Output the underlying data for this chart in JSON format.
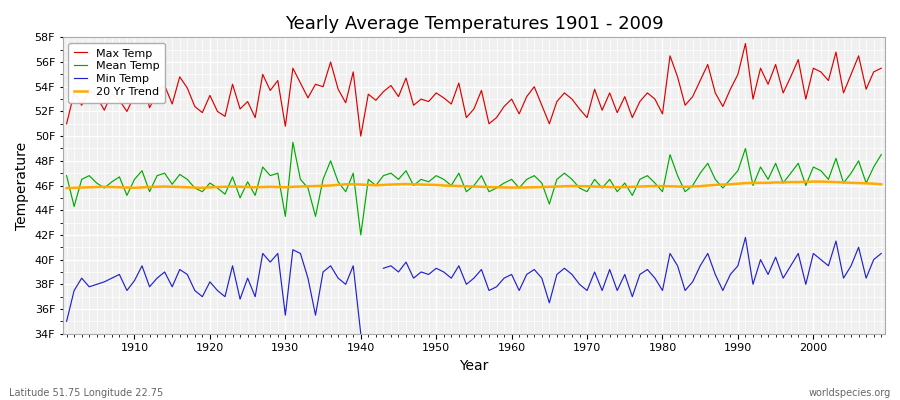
{
  "title": "Yearly Average Temperatures 1901 - 2009",
  "xlabel": "Year",
  "ylabel": "Temperature",
  "subtitle_left": "Latitude 51.75 Longitude 22.75",
  "subtitle_right": "worldspecies.org",
  "start_year": 1901,
  "end_year": 2009,
  "max_temp": [
    51.0,
    53.5,
    52.5,
    53.8,
    53.2,
    52.1,
    53.5,
    52.9,
    52.0,
    53.3,
    54.7,
    52.3,
    53.5,
    54.1,
    52.6,
    54.8,
    53.9,
    52.4,
    51.9,
    53.3,
    52.0,
    51.6,
    54.2,
    52.2,
    52.8,
    51.5,
    55.0,
    53.7,
    54.5,
    50.8,
    55.5,
    54.3,
    53.1,
    54.2,
    54.0,
    56.0,
    53.8,
    52.7,
    55.2,
    50.0,
    53.4,
    52.9,
    53.6,
    54.1,
    53.2,
    54.7,
    52.5,
    53.0,
    52.8,
    53.5,
    53.1,
    52.6,
    54.3,
    51.5,
    52.2,
    53.7,
    51.0,
    51.5,
    52.4,
    53.0,
    51.8,
    53.2,
    54.0,
    52.5,
    51.0,
    52.8,
    53.5,
    53.0,
    52.2,
    51.5,
    53.8,
    52.1,
    53.5,
    51.9,
    53.2,
    51.5,
    52.8,
    53.5,
    53.0,
    51.8,
    56.5,
    54.8,
    52.5,
    53.2,
    54.5,
    55.8,
    53.5,
    52.4,
    53.8,
    55.0,
    57.5,
    53.0,
    55.5,
    54.2,
    55.8,
    53.5,
    54.8,
    56.2,
    53.0,
    55.5,
    55.2,
    54.5,
    56.8,
    53.5,
    55.0,
    56.5,
    53.8,
    55.2,
    55.5
  ],
  "mean_temp": [
    46.8,
    44.3,
    46.5,
    46.8,
    46.2,
    45.8,
    46.3,
    46.7,
    45.2,
    46.5,
    47.2,
    45.5,
    46.8,
    47.0,
    46.1,
    46.9,
    46.5,
    45.8,
    45.5,
    46.2,
    45.8,
    45.3,
    46.7,
    45.0,
    46.3,
    45.2,
    47.5,
    46.8,
    47.0,
    43.5,
    49.5,
    46.5,
    45.8,
    43.5,
    46.5,
    48.0,
    46.3,
    45.5,
    47.0,
    42.0,
    46.5,
    46.0,
    46.8,
    47.0,
    46.5,
    47.2,
    46.0,
    46.5,
    46.3,
    46.8,
    46.5,
    46.0,
    47.0,
    45.5,
    46.0,
    46.8,
    45.5,
    45.8,
    46.2,
    46.5,
    45.8,
    46.5,
    46.8,
    46.2,
    44.5,
    46.5,
    47.0,
    46.5,
    45.8,
    45.5,
    46.5,
    45.8,
    46.5,
    45.5,
    46.2,
    45.2,
    46.5,
    46.8,
    46.2,
    45.5,
    48.5,
    46.8,
    45.5,
    46.0,
    47.0,
    47.8,
    46.5,
    45.8,
    46.5,
    47.2,
    49.0,
    46.0,
    47.5,
    46.5,
    47.8,
    46.2,
    47.0,
    47.8,
    46.0,
    47.5,
    47.2,
    46.5,
    48.2,
    46.2,
    47.0,
    48.0,
    46.2,
    47.5,
    48.5
  ],
  "min_temp": [
    35.0,
    37.5,
    38.5,
    37.8,
    38.0,
    38.2,
    38.5,
    38.8,
    37.5,
    38.3,
    39.5,
    37.8,
    38.5,
    39.0,
    37.8,
    39.2,
    38.8,
    37.5,
    37.0,
    38.2,
    37.5,
    37.0,
    39.5,
    36.8,
    38.5,
    37.0,
    40.5,
    39.8,
    40.5,
    35.5,
    40.8,
    40.5,
    38.5,
    35.5,
    39.0,
    39.5,
    38.5,
    38.0,
    39.5,
    34.0,
    null,
    null,
    39.3,
    39.5,
    39.0,
    39.8,
    38.5,
    39.0,
    38.8,
    39.3,
    39.0,
    38.5,
    39.5,
    38.0,
    38.5,
    39.2,
    37.5,
    37.8,
    38.5,
    38.8,
    37.5,
    38.8,
    39.2,
    38.5,
    36.5,
    38.8,
    39.3,
    38.8,
    38.0,
    37.5,
    39.0,
    37.5,
    39.2,
    37.5,
    38.8,
    37.0,
    38.8,
    39.2,
    38.5,
    37.5,
    40.5,
    39.5,
    37.5,
    38.2,
    39.5,
    40.5,
    38.8,
    37.5,
    38.8,
    39.5,
    41.8,
    38.0,
    40.0,
    38.8,
    40.2,
    38.5,
    39.5,
    40.5,
    38.0,
    40.5,
    40.0,
    39.5,
    41.5,
    38.5,
    39.5,
    41.0,
    38.5,
    40.0,
    40.5
  ],
  "trend": [
    45.8,
    45.82,
    45.84,
    45.86,
    45.88,
    45.9,
    45.88,
    45.86,
    45.84,
    45.82,
    45.85,
    45.88,
    45.9,
    45.92,
    45.9,
    45.88,
    45.86,
    45.84,
    45.82,
    45.85,
    45.88,
    45.9,
    45.92,
    45.9,
    45.88,
    45.86,
    45.88,
    45.9,
    45.88,
    45.86,
    45.9,
    45.92,
    45.94,
    45.96,
    45.98,
    46.0,
    46.05,
    46.1,
    46.1,
    46.08,
    46.05,
    46.02,
    46.05,
    46.08,
    46.1,
    46.12,
    46.1,
    46.08,
    46.06,
    46.05,
    46.0,
    45.98,
    45.96,
    45.94,
    45.92,
    45.9,
    45.88,
    45.86,
    45.85,
    45.84,
    45.84,
    45.85,
    45.86,
    45.88,
    45.9,
    45.92,
    45.94,
    45.96,
    45.95,
    45.94,
    45.92,
    45.9,
    45.88,
    45.87,
    45.88,
    45.9,
    45.92,
    45.94,
    45.96,
    45.95,
    45.94,
    45.92,
    45.9,
    45.92,
    45.95,
    46.0,
    46.05,
    46.08,
    46.1,
    46.15,
    46.2,
    46.2,
    46.22,
    46.22,
    46.25,
    46.25,
    46.28,
    46.28,
    46.3,
    46.32,
    46.32,
    46.3,
    46.28,
    46.25,
    46.22,
    46.2,
    46.18,
    46.15,
    46.1
  ],
  "max_color": "#dd0000",
  "mean_color": "#00aa00",
  "min_color": "#2222cc",
  "trend_color": "#ffaa00",
  "bg_color": "#ffffff",
  "plot_bg_color": "#f0f0f0",
  "ylim": [
    34,
    58
  ],
  "yticks": [
    34,
    36,
    38,
    40,
    42,
    44,
    46,
    48,
    50,
    52,
    54,
    56,
    58
  ],
  "ytick_labels": [
    "34F",
    "36F",
    "38F",
    "40F",
    "42F",
    "44F",
    "46F",
    "48F",
    "50F",
    "52F",
    "54F",
    "56F",
    "58F"
  ]
}
